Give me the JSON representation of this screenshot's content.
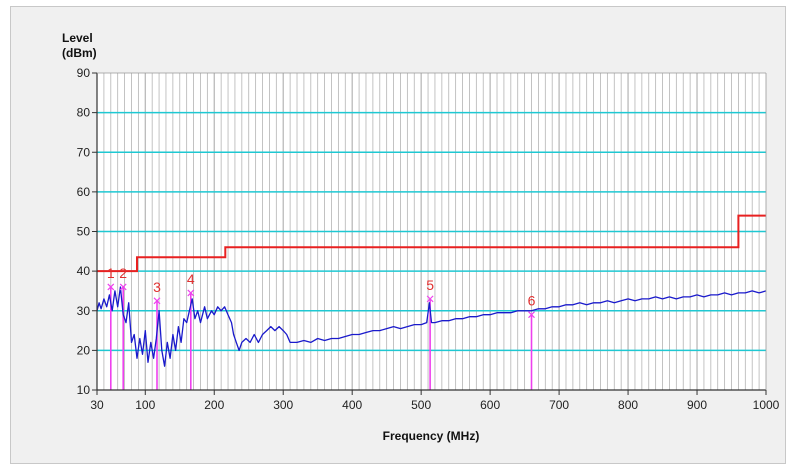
{
  "chart_data": {
    "type": "line",
    "ylabel_line1": "Level",
    "ylabel_line2": "(dBm)",
    "xlabel": "Frequency (MHz)",
    "xlim": [
      30,
      1000
    ],
    "ylim": [
      10,
      90
    ],
    "x_ticks": [
      30,
      100,
      200,
      300,
      400,
      500,
      600,
      700,
      800,
      900,
      1000
    ],
    "y_ticks": [
      10,
      20,
      30,
      40,
      50,
      60,
      70,
      80,
      90
    ],
    "grid": true,
    "colors": {
      "trace": "#1a1acc",
      "limit": "#e82020",
      "marker": "#ee40ee",
      "hgrid": "#1ec8d2",
      "vgrid": "#b4b4b4"
    },
    "limit_line": [
      [
        30,
        40
      ],
      [
        88,
        40
      ],
      [
        88,
        43.5
      ],
      [
        216,
        43.5
      ],
      [
        216,
        46
      ],
      [
        960,
        46
      ],
      [
        960,
        54
      ],
      [
        1000,
        54
      ]
    ],
    "trace": [
      [
        30,
        30
      ],
      [
        33,
        32
      ],
      [
        36,
        30.5
      ],
      [
        40,
        33
      ],
      [
        44,
        31
      ],
      [
        48,
        34
      ],
      [
        52,
        30
      ],
      [
        56,
        35
      ],
      [
        60,
        31
      ],
      [
        64,
        36
      ],
      [
        68,
        29
      ],
      [
        72,
        27
      ],
      [
        76,
        32
      ],
      [
        80,
        22
      ],
      [
        84,
        24
      ],
      [
        88,
        18
      ],
      [
        92,
        23
      ],
      [
        96,
        19
      ],
      [
        100,
        25
      ],
      [
        104,
        17
      ],
      [
        108,
        22
      ],
      [
        112,
        18
      ],
      [
        116,
        23
      ],
      [
        120,
        30
      ],
      [
        124,
        20
      ],
      [
        128,
        16
      ],
      [
        132,
        22
      ],
      [
        136,
        18
      ],
      [
        140,
        24
      ],
      [
        144,
        20
      ],
      [
        148,
        26
      ],
      [
        152,
        22
      ],
      [
        156,
        28
      ],
      [
        160,
        27
      ],
      [
        164,
        30
      ],
      [
        168,
        33
      ],
      [
        172,
        28
      ],
      [
        176,
        30
      ],
      [
        180,
        27
      ],
      [
        186,
        31
      ],
      [
        190,
        28
      ],
      [
        196,
        30
      ],
      [
        200,
        29
      ],
      [
        205,
        31
      ],
      [
        210,
        30
      ],
      [
        215,
        31
      ],
      [
        220,
        29
      ],
      [
        225,
        27
      ],
      [
        228,
        24
      ],
      [
        232,
        22
      ],
      [
        236,
        20
      ],
      [
        240,
        22
      ],
      [
        246,
        23
      ],
      [
        252,
        22
      ],
      [
        258,
        24
      ],
      [
        264,
        22
      ],
      [
        270,
        24
      ],
      [
        276,
        25
      ],
      [
        282,
        26
      ],
      [
        288,
        25
      ],
      [
        294,
        26
      ],
      [
        300,
        25
      ],
      [
        305,
        24
      ],
      [
        310,
        22
      ],
      [
        320,
        22
      ],
      [
        330,
        22.5
      ],
      [
        340,
        22
      ],
      [
        350,
        23
      ],
      [
        360,
        22.5
      ],
      [
        370,
        23
      ],
      [
        380,
        23
      ],
      [
        390,
        23.5
      ],
      [
        400,
        24
      ],
      [
        410,
        24
      ],
      [
        420,
        24.5
      ],
      [
        430,
        25
      ],
      [
        440,
        25
      ],
      [
        450,
        25.5
      ],
      [
        460,
        26
      ],
      [
        470,
        25.5
      ],
      [
        480,
        26
      ],
      [
        490,
        26.5
      ],
      [
        500,
        26.5
      ],
      [
        508,
        27
      ],
      [
        512,
        32
      ],
      [
        515,
        27
      ],
      [
        520,
        27
      ],
      [
        530,
        27.5
      ],
      [
        540,
        27.5
      ],
      [
        550,
        28
      ],
      [
        560,
        28
      ],
      [
        570,
        28.5
      ],
      [
        580,
        28.5
      ],
      [
        590,
        29
      ],
      [
        600,
        29
      ],
      [
        610,
        29.5
      ],
      [
        620,
        29.5
      ],
      [
        630,
        29.5
      ],
      [
        640,
        30
      ],
      [
        650,
        30
      ],
      [
        660,
        30
      ],
      [
        670,
        30.5
      ],
      [
        680,
        30.5
      ],
      [
        690,
        31
      ],
      [
        700,
        31
      ],
      [
        710,
        31.5
      ],
      [
        720,
        31.5
      ],
      [
        730,
        32
      ],
      [
        740,
        31.5
      ],
      [
        750,
        32
      ],
      [
        760,
        32
      ],
      [
        770,
        32.5
      ],
      [
        780,
        32
      ],
      [
        790,
        32.5
      ],
      [
        800,
        33
      ],
      [
        810,
        32.5
      ],
      [
        820,
        33
      ],
      [
        830,
        33
      ],
      [
        840,
        33.5
      ],
      [
        850,
        33
      ],
      [
        860,
        33.5
      ],
      [
        870,
        33
      ],
      [
        880,
        33.5
      ],
      [
        890,
        33.5
      ],
      [
        900,
        34
      ],
      [
        910,
        33.5
      ],
      [
        920,
        34
      ],
      [
        930,
        34
      ],
      [
        940,
        34.5
      ],
      [
        950,
        34
      ],
      [
        960,
        34.5
      ],
      [
        970,
        34.5
      ],
      [
        980,
        35
      ],
      [
        990,
        34.5
      ],
      [
        1000,
        35
      ]
    ],
    "markers": [
      {
        "label": "1",
        "x": 50,
        "y": 36
      },
      {
        "label": "2",
        "x": 68,
        "y": 36
      },
      {
        "label": "3",
        "x": 117,
        "y": 32.5
      },
      {
        "label": "4",
        "x": 166,
        "y": 34.5
      },
      {
        "label": "5",
        "x": 513,
        "y": 33
      },
      {
        "label": "6",
        "x": 660,
        "y": 29
      }
    ]
  }
}
